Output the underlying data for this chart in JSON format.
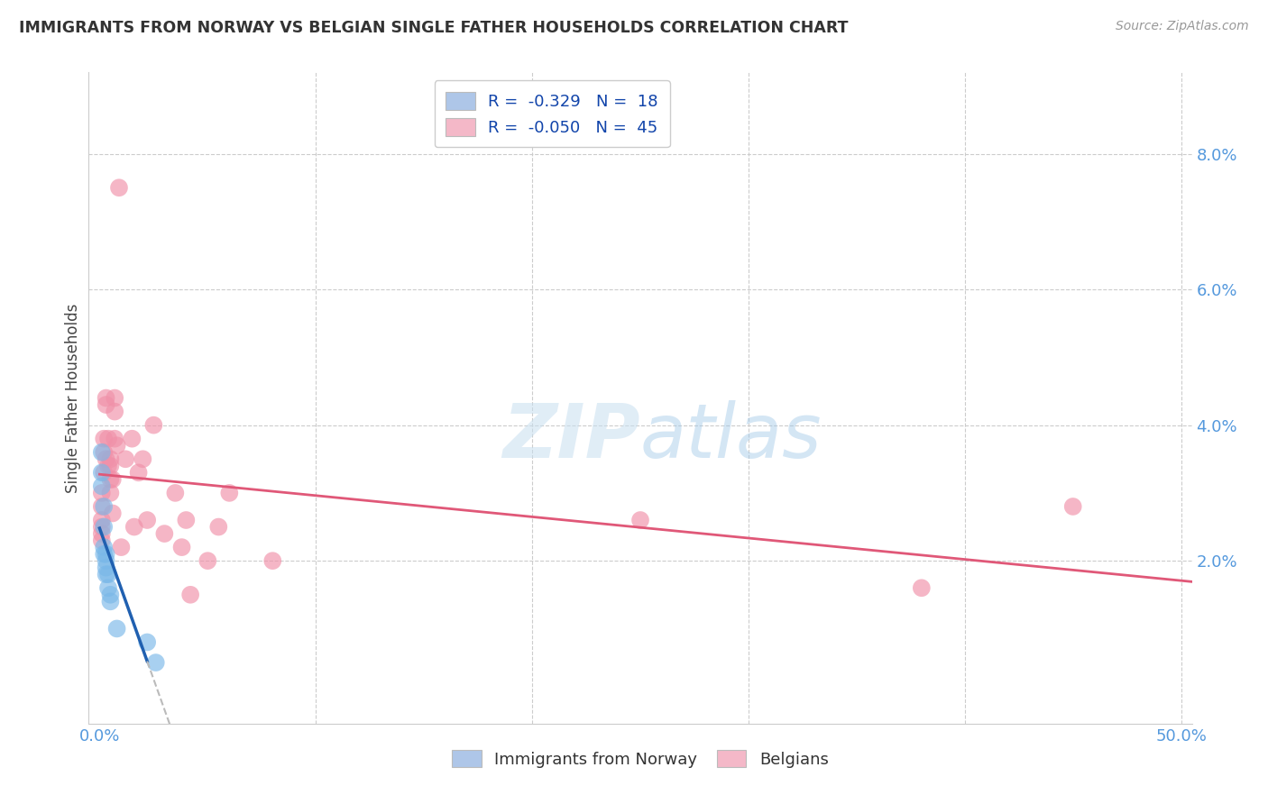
{
  "title": "IMMIGRANTS FROM NORWAY VS BELGIAN SINGLE FATHER HOUSEHOLDS CORRELATION CHART",
  "source": "Source: ZipAtlas.com",
  "ylabel": "Single Father Households",
  "ytick_vals": [
    0.02,
    0.04,
    0.06,
    0.08
  ],
  "xlim": [
    -0.005,
    0.505
  ],
  "ylim": [
    -0.004,
    0.092
  ],
  "legend_label1": "R =  -0.329   N =  18",
  "legend_label2": "R =  -0.050   N =  45",
  "legend_color1": "#aec6e8",
  "legend_color2": "#f4b8c8",
  "scatter_color1": "#7ab8e8",
  "scatter_color2": "#f090a8",
  "trend_color1": "#2060b0",
  "trend_color2": "#e05878",
  "trend_dash_color": "#bbbbbb",
  "norway_x": [
    0.001,
    0.001,
    0.001,
    0.002,
    0.002,
    0.002,
    0.002,
    0.003,
    0.003,
    0.003,
    0.003,
    0.004,
    0.004,
    0.005,
    0.005,
    0.008,
    0.022,
    0.026
  ],
  "norway_y": [
    0.036,
    0.033,
    0.031,
    0.028,
    0.025,
    0.022,
    0.021,
    0.021,
    0.02,
    0.019,
    0.018,
    0.018,
    0.016,
    0.015,
    0.014,
    0.01,
    0.008,
    0.005
  ],
  "belgian_x": [
    0.001,
    0.001,
    0.001,
    0.001,
    0.001,
    0.001,
    0.002,
    0.002,
    0.002,
    0.003,
    0.003,
    0.003,
    0.004,
    0.004,
    0.005,
    0.005,
    0.005,
    0.005,
    0.006,
    0.006,
    0.007,
    0.007,
    0.007,
    0.008,
    0.009,
    0.01,
    0.012,
    0.015,
    0.016,
    0.018,
    0.02,
    0.022,
    0.025,
    0.03,
    0.035,
    0.038,
    0.04,
    0.042,
    0.05,
    0.055,
    0.06,
    0.08,
    0.25,
    0.38,
    0.45
  ],
  "belgian_y": [
    0.03,
    0.028,
    0.026,
    0.025,
    0.024,
    0.023,
    0.038,
    0.036,
    0.033,
    0.044,
    0.043,
    0.035,
    0.038,
    0.034,
    0.035,
    0.034,
    0.032,
    0.03,
    0.032,
    0.027,
    0.044,
    0.042,
    0.038,
    0.037,
    0.075,
    0.022,
    0.035,
    0.038,
    0.025,
    0.033,
    0.035,
    0.026,
    0.04,
    0.024,
    0.03,
    0.022,
    0.026,
    0.015,
    0.02,
    0.025,
    0.03,
    0.02,
    0.026,
    0.016,
    0.028
  ]
}
